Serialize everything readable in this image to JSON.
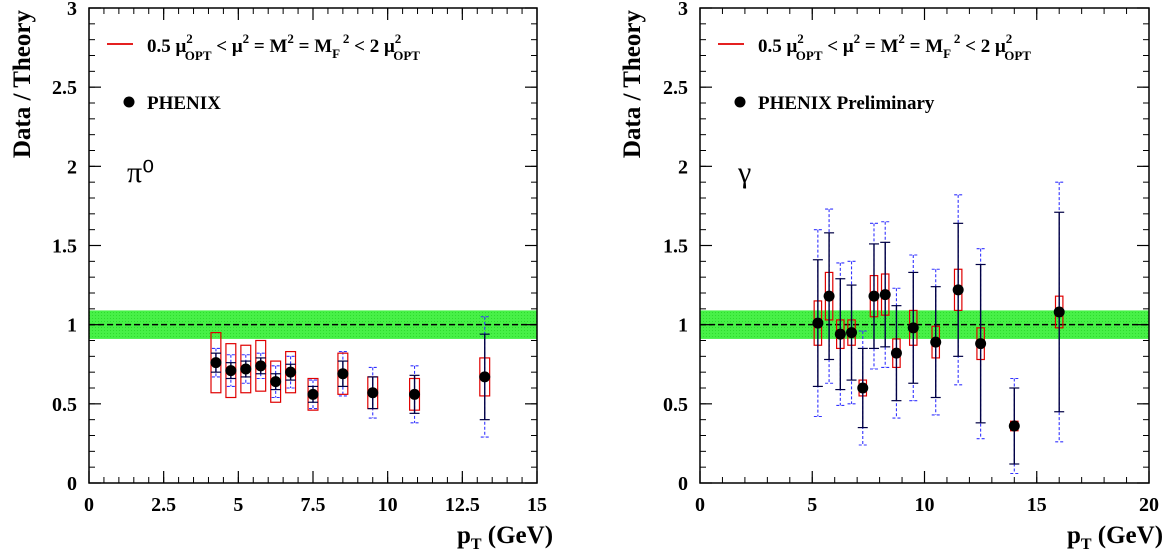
{
  "chart_data": [
    {
      "type": "scatter",
      "xlabel": "p",
      "xlabel_sub": "T",
      "xlabel_unit": " (GeV)",
      "ylabel": "Data / Theory",
      "xlim": [
        0,
        15
      ],
      "ylim": [
        0,
        3
      ],
      "xticks": [
        "0",
        "2.5",
        "5",
        "7.5",
        "10",
        "12.5",
        "15"
      ],
      "xtick_values": [
        0,
        2.5,
        5,
        7.5,
        10,
        12.5,
        15
      ],
      "yticks": [
        "0",
        "0.5",
        "1",
        "1.5",
        "2",
        "2.5",
        "3"
      ],
      "ytick_values": [
        0,
        0.5,
        1,
        1.5,
        2,
        2.5,
        3
      ],
      "legend": {
        "scale_text": "0.5 μ²OPT < μ² = M² = MF² < 2 μ²OPT",
        "marker_text": "PHENIX"
      },
      "panel_label": "π⁰",
      "band": {
        "low": 0.91,
        "high": 1.09,
        "color": "#33ee33"
      },
      "reference_line": 1.0,
      "points": [
        {
          "x": 4.25,
          "y": 0.76,
          "stat": 0.06,
          "sys": 0.09,
          "box": 0.19,
          "box_w": 0.25
        },
        {
          "x": 4.75,
          "y": 0.71,
          "stat": 0.05,
          "sys": 0.1,
          "box": 0.17,
          "box_w": 0.25
        },
        {
          "x": 5.25,
          "y": 0.72,
          "stat": 0.05,
          "sys": 0.09,
          "box": 0.15,
          "box_w": 0.25
        },
        {
          "x": 5.75,
          "y": 0.74,
          "stat": 0.05,
          "sys": 0.08,
          "box": 0.16,
          "box_w": 0.25
        },
        {
          "x": 6.25,
          "y": 0.64,
          "stat": 0.05,
          "sys": 0.1,
          "box": 0.13,
          "box_w": 0.25
        },
        {
          "x": 6.75,
          "y": 0.7,
          "stat": 0.05,
          "sys": 0.1,
          "box": 0.13,
          "box_w": 0.25
        },
        {
          "x": 7.5,
          "y": 0.56,
          "stat": 0.05,
          "sys": 0.09,
          "box": 0.1,
          "box_w": 0.25
        },
        {
          "x": 8.5,
          "y": 0.69,
          "stat": 0.08,
          "sys": 0.14,
          "box": 0.13,
          "box_w": 0.25
        },
        {
          "x": 9.5,
          "y": 0.57,
          "stat": 0.1,
          "sys": 0.16,
          "box": 0.1,
          "box_w": 0.25
        },
        {
          "x": 10.9,
          "y": 0.56,
          "stat": 0.12,
          "sys": 0.18,
          "box": 0.1,
          "box_w": 0.25
        },
        {
          "x": 13.25,
          "y": 0.67,
          "stat": 0.27,
          "sys": 0.38,
          "box": 0.12,
          "box_w": 0.25
        }
      ]
    },
    {
      "type": "scatter",
      "xlabel": "p",
      "xlabel_sub": "T",
      "xlabel_unit": " (GeV)",
      "ylabel": "Data / Theory",
      "xlim": [
        0,
        20
      ],
      "ylim": [
        0,
        3
      ],
      "xticks": [
        "0",
        "5",
        "10",
        "15",
        "20"
      ],
      "xtick_values": [
        0,
        5,
        10,
        15,
        20
      ],
      "yticks": [
        "0",
        "0.5",
        "1",
        "1.5",
        "2",
        "2.5",
        "3"
      ],
      "ytick_values": [
        0,
        0.5,
        1,
        1.5,
        2,
        2.5,
        3
      ],
      "legend": {
        "scale_text": "0.5 μ²OPT < μ² = M² = MF² < 2 μ²OPT",
        "marker_text": "PHENIX Preliminary"
      },
      "panel_label": "γ",
      "band": {
        "low": 0.91,
        "high": 1.09,
        "color": "#33ee33"
      },
      "reference_line": 1.0,
      "points": [
        {
          "x": 5.25,
          "y": 1.01,
          "stat": 0.4,
          "sys": 0.59,
          "box": 0.14,
          "box_w": 0.25
        },
        {
          "x": 5.75,
          "y": 1.18,
          "stat": 0.4,
          "sys": 0.55,
          "box": 0.15,
          "box_w": 0.25
        },
        {
          "x": 6.25,
          "y": 0.94,
          "stat": 0.35,
          "sys": 0.45,
          "box": 0.09,
          "box_w": 0.25
        },
        {
          "x": 6.75,
          "y": 0.95,
          "stat": 0.3,
          "sys": 0.45,
          "box": 0.08,
          "box_w": 0.25
        },
        {
          "x": 7.25,
          "y": 0.6,
          "stat": 0.25,
          "sys": 0.36,
          "box": 0.05,
          "box_w": 0.25
        },
        {
          "x": 7.75,
          "y": 1.18,
          "stat": 0.33,
          "sys": 0.46,
          "box": 0.13,
          "box_w": 0.25
        },
        {
          "x": 8.25,
          "y": 1.19,
          "stat": 0.33,
          "sys": 0.46,
          "box": 0.13,
          "box_w": 0.25
        },
        {
          "x": 8.75,
          "y": 0.82,
          "stat": 0.3,
          "sys": 0.41,
          "box": 0.09,
          "box_w": 0.25
        },
        {
          "x": 9.5,
          "y": 0.98,
          "stat": 0.35,
          "sys": 0.46,
          "box": 0.11,
          "box_w": 0.25
        },
        {
          "x": 10.5,
          "y": 0.89,
          "stat": 0.35,
          "sys": 0.46,
          "box": 0.1,
          "box_w": 0.25
        },
        {
          "x": 11.5,
          "y": 1.22,
          "stat": 0.42,
          "sys": 0.6,
          "box": 0.13,
          "box_w": 0.25
        },
        {
          "x": 12.5,
          "y": 0.88,
          "stat": 0.5,
          "sys": 0.6,
          "box": 0.1,
          "box_w": 0.25
        },
        {
          "x": 14.0,
          "y": 0.36,
          "stat": 0.24,
          "sys": 0.3,
          "box": 0.03,
          "box_w": 0.25
        },
        {
          "x": 16.0,
          "y": 1.08,
          "stat": 0.63,
          "sys": 0.82,
          "box": 0.1,
          "box_w": 0.25
        }
      ]
    }
  ]
}
